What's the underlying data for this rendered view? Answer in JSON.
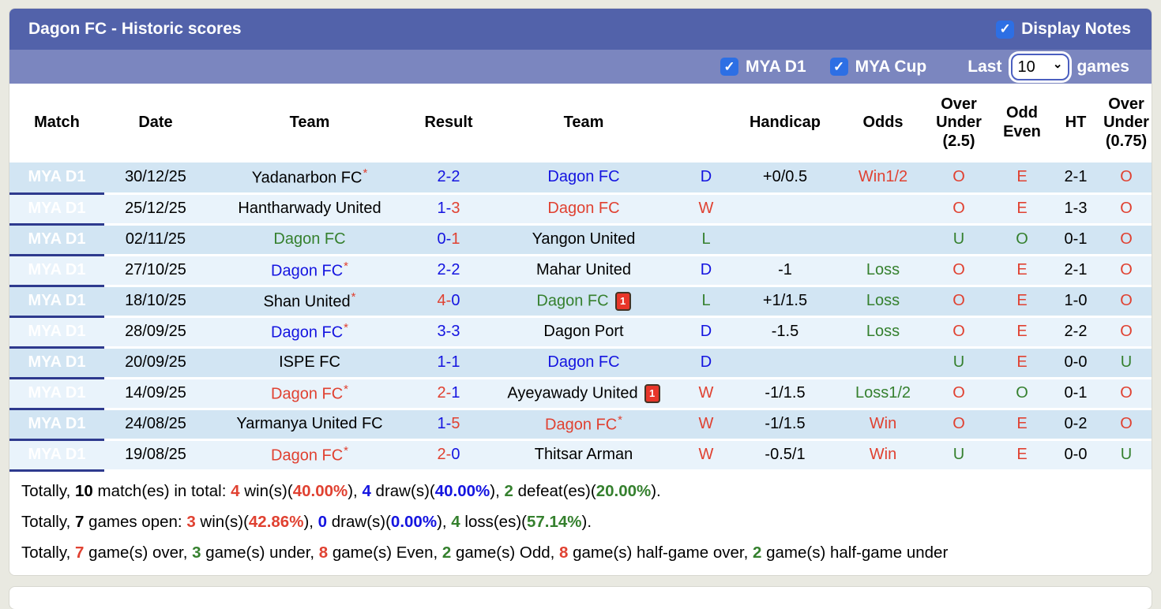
{
  "colors": {
    "title_bar": "#5262aa",
    "filter_bar": "#7b86bf",
    "league_cell": "#2e3a8e",
    "row_odd": "#d2e5f3",
    "row_even": "#e9f3fb",
    "red": "#e04131",
    "blue": "#1414e0",
    "green": "#35802e",
    "checkbox_blue": "#2d6fe4"
  },
  "header": {
    "title": "Dagon FC - Historic scores",
    "display_notes": {
      "label": "Display Notes",
      "checked": true
    }
  },
  "filters": {
    "leagues": [
      {
        "label": "MYA D1",
        "checked": true
      },
      {
        "label": "MYA Cup",
        "checked": true
      }
    ],
    "last_label": "Last",
    "games_options": [
      "10"
    ],
    "games_selected": "10",
    "games_label": "games"
  },
  "table": {
    "columns": [
      "Match",
      "Date",
      "Team",
      "Result",
      "Team",
      "",
      "Handicap",
      "Odds",
      "Over Under (2.5)",
      "Odd Even",
      "HT",
      "Over Under (0.75)"
    ],
    "rows": [
      {
        "league": "MYA D1",
        "date": "30/12/25",
        "home": {
          "name": "Yadanarbon FC",
          "star": true,
          "color": "black",
          "red_card": false
        },
        "result": {
          "home": "2",
          "away": "2",
          "home_color": "blue",
          "away_color": "blue"
        },
        "away": {
          "name": "Dagon FC",
          "star": false,
          "color": "blue",
          "red_card": false
        },
        "wdl": {
          "text": "D",
          "color": "blue"
        },
        "handicap": "+0/0.5",
        "odds": {
          "text": "Win1/2",
          "color": "red"
        },
        "ou25": {
          "text": "O",
          "color": "red"
        },
        "odd_even": {
          "text": "E",
          "color": "red"
        },
        "ht": "2-1",
        "ou075": {
          "text": "O",
          "color": "red"
        }
      },
      {
        "league": "MYA D1",
        "date": "25/12/25",
        "home": {
          "name": "Hantharwady United",
          "star": false,
          "color": "black",
          "red_card": false
        },
        "result": {
          "home": "1",
          "away": "3",
          "home_color": "blue",
          "away_color": "red"
        },
        "away": {
          "name": "Dagon FC",
          "star": false,
          "color": "red",
          "red_card": false
        },
        "wdl": {
          "text": "W",
          "color": "red"
        },
        "handicap": "",
        "odds": {
          "text": "",
          "color": "black"
        },
        "ou25": {
          "text": "O",
          "color": "red"
        },
        "odd_even": {
          "text": "E",
          "color": "red"
        },
        "ht": "1-3",
        "ou075": {
          "text": "O",
          "color": "red"
        }
      },
      {
        "league": "MYA D1",
        "date": "02/11/25",
        "home": {
          "name": "Dagon FC",
          "star": false,
          "color": "green",
          "red_card": false
        },
        "result": {
          "home": "0",
          "away": "1",
          "home_color": "blue",
          "away_color": "red"
        },
        "away": {
          "name": "Yangon United",
          "star": false,
          "color": "black",
          "red_card": false
        },
        "wdl": {
          "text": "L",
          "color": "green"
        },
        "handicap": "",
        "odds": {
          "text": "",
          "color": "black"
        },
        "ou25": {
          "text": "U",
          "color": "green"
        },
        "odd_even": {
          "text": "O",
          "color": "green"
        },
        "ht": "0-1",
        "ou075": {
          "text": "O",
          "color": "red"
        }
      },
      {
        "league": "MYA D1",
        "date": "27/10/25",
        "home": {
          "name": "Dagon FC",
          "star": true,
          "color": "blue",
          "red_card": false
        },
        "result": {
          "home": "2",
          "away": "2",
          "home_color": "blue",
          "away_color": "blue"
        },
        "away": {
          "name": "Mahar United",
          "star": false,
          "color": "black",
          "red_card": false
        },
        "wdl": {
          "text": "D",
          "color": "blue"
        },
        "handicap": "-1",
        "odds": {
          "text": "Loss",
          "color": "green"
        },
        "ou25": {
          "text": "O",
          "color": "red"
        },
        "odd_even": {
          "text": "E",
          "color": "red"
        },
        "ht": "2-1",
        "ou075": {
          "text": "O",
          "color": "red"
        }
      },
      {
        "league": "MYA D1",
        "date": "18/10/25",
        "home": {
          "name": "Shan United",
          "star": true,
          "color": "black",
          "red_card": false
        },
        "result": {
          "home": "4",
          "away": "0",
          "home_color": "red",
          "away_color": "blue"
        },
        "away": {
          "name": "Dagon FC",
          "star": false,
          "color": "green",
          "red_card": true
        },
        "wdl": {
          "text": "L",
          "color": "green"
        },
        "handicap": "+1/1.5",
        "odds": {
          "text": "Loss",
          "color": "green"
        },
        "ou25": {
          "text": "O",
          "color": "red"
        },
        "odd_even": {
          "text": "E",
          "color": "red"
        },
        "ht": "1-0",
        "ou075": {
          "text": "O",
          "color": "red"
        }
      },
      {
        "league": "MYA D1",
        "date": "28/09/25",
        "home": {
          "name": "Dagon FC",
          "star": true,
          "color": "blue",
          "red_card": false
        },
        "result": {
          "home": "3",
          "away": "3",
          "home_color": "blue",
          "away_color": "blue"
        },
        "away": {
          "name": "Dagon Port",
          "star": false,
          "color": "black",
          "red_card": false
        },
        "wdl": {
          "text": "D",
          "color": "blue"
        },
        "handicap": "-1.5",
        "odds": {
          "text": "Loss",
          "color": "green"
        },
        "ou25": {
          "text": "O",
          "color": "red"
        },
        "odd_even": {
          "text": "E",
          "color": "red"
        },
        "ht": "2-2",
        "ou075": {
          "text": "O",
          "color": "red"
        }
      },
      {
        "league": "MYA D1",
        "date": "20/09/25",
        "home": {
          "name": "ISPE FC",
          "star": false,
          "color": "black",
          "red_card": false
        },
        "result": {
          "home": "1",
          "away": "1",
          "home_color": "blue",
          "away_color": "blue"
        },
        "away": {
          "name": "Dagon FC",
          "star": false,
          "color": "blue",
          "red_card": false
        },
        "wdl": {
          "text": "D",
          "color": "blue"
        },
        "handicap": "",
        "odds": {
          "text": "",
          "color": "black"
        },
        "ou25": {
          "text": "U",
          "color": "green"
        },
        "odd_even": {
          "text": "E",
          "color": "red"
        },
        "ht": "0-0",
        "ou075": {
          "text": "U",
          "color": "green"
        }
      },
      {
        "league": "MYA D1",
        "date": "14/09/25",
        "home": {
          "name": "Dagon FC",
          "star": true,
          "color": "red",
          "red_card": false
        },
        "result": {
          "home": "2",
          "away": "1",
          "home_color": "red",
          "away_color": "blue"
        },
        "away": {
          "name": "Ayeyawady United",
          "star": false,
          "color": "black",
          "red_card": true
        },
        "wdl": {
          "text": "W",
          "color": "red"
        },
        "handicap": "-1/1.5",
        "odds": {
          "text": "Loss1/2",
          "color": "green"
        },
        "ou25": {
          "text": "O",
          "color": "red"
        },
        "odd_even": {
          "text": "O",
          "color": "green"
        },
        "ht": "0-1",
        "ou075": {
          "text": "O",
          "color": "red"
        }
      },
      {
        "league": "MYA D1",
        "date": "24/08/25",
        "home": {
          "name": "Yarmanya United FC",
          "star": false,
          "color": "black",
          "red_card": false
        },
        "result": {
          "home": "1",
          "away": "5",
          "home_color": "blue",
          "away_color": "red"
        },
        "away": {
          "name": "Dagon FC",
          "star": true,
          "color": "red",
          "red_card": false
        },
        "wdl": {
          "text": "W",
          "color": "red"
        },
        "handicap": "-1/1.5",
        "odds": {
          "text": "Win",
          "color": "red"
        },
        "ou25": {
          "text": "O",
          "color": "red"
        },
        "odd_even": {
          "text": "E",
          "color": "red"
        },
        "ht": "0-2",
        "ou075": {
          "text": "O",
          "color": "red"
        }
      },
      {
        "league": "MYA D1",
        "date": "19/08/25",
        "home": {
          "name": "Dagon FC",
          "star": true,
          "color": "red",
          "red_card": false
        },
        "result": {
          "home": "2",
          "away": "0",
          "home_color": "red",
          "away_color": "blue"
        },
        "away": {
          "name": "Thitsar Arman",
          "star": false,
          "color": "black",
          "red_card": false
        },
        "wdl": {
          "text": "W",
          "color": "red"
        },
        "handicap": "-0.5/1",
        "odds": {
          "text": "Win",
          "color": "red"
        },
        "ou25": {
          "text": "U",
          "color": "green"
        },
        "odd_even": {
          "text": "E",
          "color": "red"
        },
        "ht": "0-0",
        "ou075": {
          "text": "U",
          "color": "green"
        }
      }
    ]
  },
  "summary": {
    "lines": [
      [
        {
          "t": "Totally, ",
          "c": "black",
          "b": false
        },
        {
          "t": "10",
          "c": "black",
          "b": true
        },
        {
          "t": " match(es) in total: ",
          "c": "black",
          "b": false
        },
        {
          "t": "4",
          "c": "red",
          "b": true
        },
        {
          "t": " win(s)(",
          "c": "black",
          "b": false
        },
        {
          "t": "40.00%",
          "c": "red",
          "b": true
        },
        {
          "t": "), ",
          "c": "black",
          "b": false
        },
        {
          "t": "4",
          "c": "blue",
          "b": true
        },
        {
          "t": " draw(s)(",
          "c": "black",
          "b": false
        },
        {
          "t": "40.00%",
          "c": "blue",
          "b": true
        },
        {
          "t": "), ",
          "c": "black",
          "b": false
        },
        {
          "t": "2",
          "c": "green",
          "b": true
        },
        {
          "t": " defeat(es)(",
          "c": "black",
          "b": false
        },
        {
          "t": "20.00%",
          "c": "green",
          "b": true
        },
        {
          "t": ").",
          "c": "black",
          "b": false
        }
      ],
      [
        {
          "t": "Totally, ",
          "c": "black",
          "b": false
        },
        {
          "t": "7",
          "c": "black",
          "b": true
        },
        {
          "t": " games open: ",
          "c": "black",
          "b": false
        },
        {
          "t": "3",
          "c": "red",
          "b": true
        },
        {
          "t": " win(s)(",
          "c": "black",
          "b": false
        },
        {
          "t": "42.86%",
          "c": "red",
          "b": true
        },
        {
          "t": "), ",
          "c": "black",
          "b": false
        },
        {
          "t": "0",
          "c": "blue",
          "b": true
        },
        {
          "t": " draw(s)(",
          "c": "black",
          "b": false
        },
        {
          "t": "0.00%",
          "c": "blue",
          "b": true
        },
        {
          "t": "), ",
          "c": "black",
          "b": false
        },
        {
          "t": "4",
          "c": "green",
          "b": true
        },
        {
          "t": " loss(es)(",
          "c": "black",
          "b": false
        },
        {
          "t": "57.14%",
          "c": "green",
          "b": true
        },
        {
          "t": ").",
          "c": "black",
          "b": false
        }
      ],
      [
        {
          "t": "Totally, ",
          "c": "black",
          "b": false
        },
        {
          "t": "7",
          "c": "red",
          "b": true
        },
        {
          "t": " game(s) over, ",
          "c": "black",
          "b": false
        },
        {
          "t": "3",
          "c": "green",
          "b": true
        },
        {
          "t": " game(s) under, ",
          "c": "black",
          "b": false
        },
        {
          "t": "8",
          "c": "red",
          "b": true
        },
        {
          "t": " game(s) Even, ",
          "c": "black",
          "b": false
        },
        {
          "t": "2",
          "c": "green",
          "b": true
        },
        {
          "t": " game(s) Odd, ",
          "c": "black",
          "b": false
        },
        {
          "t": "8",
          "c": "red",
          "b": true
        },
        {
          "t": " game(s) half-game over, ",
          "c": "black",
          "b": false
        },
        {
          "t": "2",
          "c": "green",
          "b": true
        },
        {
          "t": " game(s) half-game under",
          "c": "black",
          "b": false
        }
      ]
    ]
  }
}
